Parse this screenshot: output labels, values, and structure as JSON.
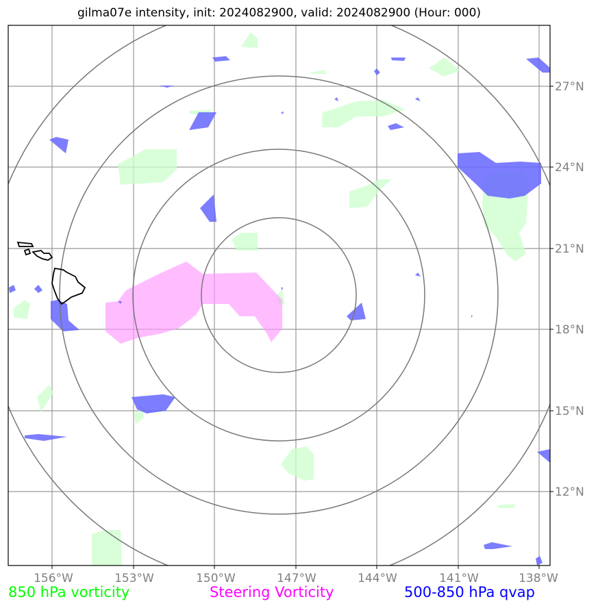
{
  "title": "gilma07e intensity, init: 2024082900, valid: 2024082900 (Hour: 000)",
  "axes": {
    "lon_ticks": [
      "156°W",
      "153°W",
      "150°W",
      "147°W",
      "144°W",
      "141°W",
      "138°W"
    ],
    "lat_ticks": [
      "27°N",
      "24°N",
      "21°N",
      "18°N",
      "15°N",
      "12°N"
    ]
  },
  "legend": [
    {
      "label": "850 hPa vorticity",
      "color": "#00ff00"
    },
    {
      "label": "Steering Vorticity",
      "color": "#ff00ff"
    },
    {
      "label": "500-850 hPa qvap",
      "color": "#0000ff"
    }
  ],
  "colors": {
    "green_fill": "#ccffcc",
    "magenta_fill": "#ff99ff",
    "blue_fill": "#6666ff",
    "grid": "#888888",
    "rings": "#777777",
    "coast": "#000000"
  },
  "icons": {
    "coastline": "hawaii-coastline"
  }
}
